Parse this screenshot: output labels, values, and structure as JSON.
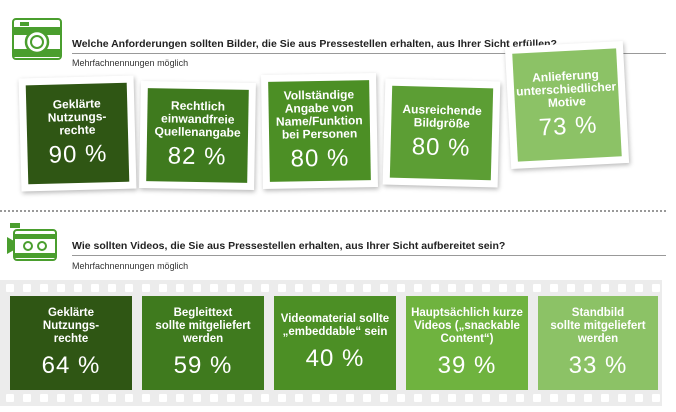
{
  "section_photos": {
    "icon": "camera-icon",
    "question": "Welche Anforderungen sollten Bilder, die Sie aus Pressestellen erhalten, aus Ihrer Sicht erfüllen?",
    "note": "Mehrfachnennungen möglich",
    "cards": [
      {
        "label": "Geklärte\nNutzungs-\nrechte",
        "value": "90 %"
      },
      {
        "label": "Rechtlich\neinwandfreie\nQuellenangabe",
        "value": "82 %"
      },
      {
        "label": "Vollständige\nAngabe von\nName/Funktion\nbei Personen",
        "value": "80 %"
      },
      {
        "label": "Ausreichende\nBildgröße",
        "value": "80 %"
      },
      {
        "label": "Anlieferung\nunterschiedlicher\nMotive",
        "value": "73 %"
      }
    ]
  },
  "section_videos": {
    "icon": "video-camera-icon",
    "question": "Wie sollten Videos, die Sie aus Pressestellen erhalten, aus Ihrer Sicht aufbereitet sein?",
    "note": "Mehrfachnennungen möglich",
    "frames": [
      {
        "label": "Geklärte\nNutzungs-\nrechte",
        "value": "64 %"
      },
      {
        "label": "Begleittext\nsollte mitgeliefert\nwerden",
        "value": "59 %"
      },
      {
        "label": "Videomaterial sollte\n„embeddable“ sein",
        "value": "40 %"
      },
      {
        "label": "Hauptsächlich kurze\nVideos („snackable\nContent“)",
        "value": "39 %"
      },
      {
        "label": "Standbild\nsollte mitgeliefert\nwerden",
        "value": "33 %"
      }
    ]
  },
  "colors": {
    "green_1": "#2f5614",
    "green_2": "#3f7a1e",
    "green_3": "#4c8f25",
    "green_4": "#5c9e34",
    "green_5": "#8cc266",
    "icon_green": "#4a9e2e"
  },
  "chart_data": [
    {
      "type": "bar",
      "categories": [
        "Geklärte Nutzungsrechte",
        "Rechtlich einwandfreie Quellenangabe",
        "Vollständige Angabe von Name/Funktion bei Personen",
        "Ausreichende Bildgröße",
        "Anlieferung unterschiedlicher Motive"
      ],
      "values": [
        90,
        82,
        80,
        80,
        73
      ],
      "title": "Welche Anforderungen sollten Bilder, die Sie aus Pressestellen erhalten, aus Ihrer Sicht erfüllen?",
      "subtitle": "Mehrfachnennungen möglich"
    },
    {
      "type": "bar",
      "categories": [
        "Geklärte Nutzungsrechte",
        "Begleittext sollte mitgeliefert werden",
        "Videomaterial sollte „embeddable“ sein",
        "Hauptsächlich kurze Videos („snackable Content“)",
        "Standbild sollte mitgeliefert werden"
      ],
      "values": [
        64,
        59,
        40,
        39,
        33
      ],
      "title": "Wie sollten Videos, die Sie aus Pressestellen erhalten, aus Ihrer Sicht aufbereitet sein?",
      "subtitle": "Mehrfachnennungen möglich"
    }
  ]
}
